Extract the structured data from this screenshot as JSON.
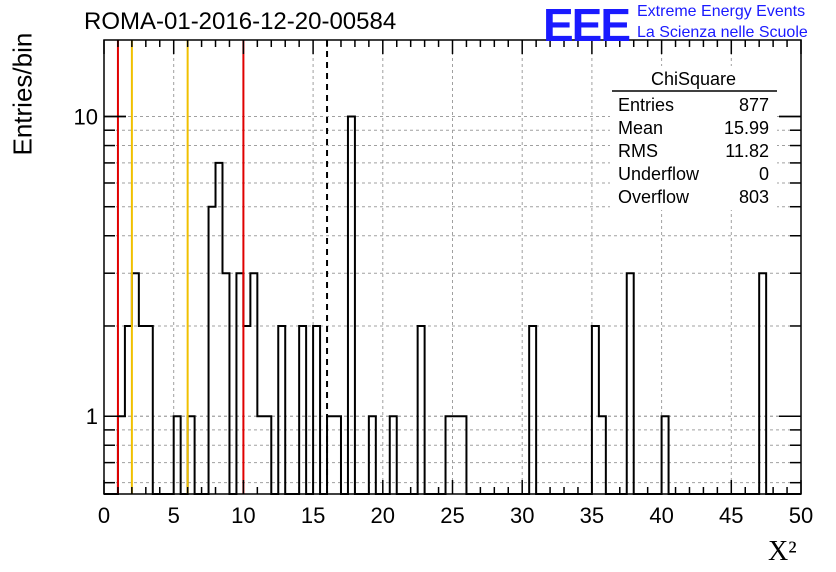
{
  "header": {
    "run_id": "ROMA-01-2016-12-20-00584",
    "logo_text": "EEE",
    "logo_line1": "Extreme Energy Events",
    "logo_line2": "La Scienza nelle Scuole"
  },
  "stats_box": {
    "title": "ChiSquare",
    "rows": [
      {
        "label": "Entries",
        "value": "877"
      },
      {
        "label": "Mean",
        "value": "15.99"
      },
      {
        "label": "RMS",
        "value": "11.82"
      },
      {
        "label": "Underflow",
        "value": "0"
      },
      {
        "label": "Overflow",
        "value": "803"
      }
    ]
  },
  "chart_data": {
    "type": "bar",
    "histogram": true,
    "ylabel": "Entries/bin",
    "xlabel": "X²",
    "xlim": [
      0,
      50
    ],
    "ylim": [
      0.55,
      18
    ],
    "yscale": "log",
    "grid": true,
    "bin_width": 0.5,
    "x_ticks": [
      0,
      5,
      10,
      15,
      20,
      25,
      30,
      35,
      40,
      45,
      50
    ],
    "y_ticks": [
      1,
      10
    ],
    "bins": [
      {
        "x0": 1.0,
        "count": 1
      },
      {
        "x0": 1.5,
        "count": 2
      },
      {
        "x0": 2.0,
        "count": 3
      },
      {
        "x0": 2.5,
        "count": 2
      },
      {
        "x0": 3.0,
        "count": 2
      },
      {
        "x0": 5.0,
        "count": 1
      },
      {
        "x0": 6.0,
        "count": 1
      },
      {
        "x0": 7.5,
        "count": 5
      },
      {
        "x0": 8.0,
        "count": 7
      },
      {
        "x0": 8.5,
        "count": 3
      },
      {
        "x0": 9.5,
        "count": 3
      },
      {
        "x0": 10.0,
        "count": 2
      },
      {
        "x0": 10.5,
        "count": 3
      },
      {
        "x0": 11.0,
        "count": 1
      },
      {
        "x0": 11.5,
        "count": 1
      },
      {
        "x0": 12.5,
        "count": 2
      },
      {
        "x0": 14.0,
        "count": 2
      },
      {
        "x0": 15.0,
        "count": 2
      },
      {
        "x0": 16.0,
        "count": 1
      },
      {
        "x0": 16.5,
        "count": 1
      },
      {
        "x0": 17.5,
        "count": 10
      },
      {
        "x0": 19.0,
        "count": 1
      },
      {
        "x0": 20.5,
        "count": 1
      },
      {
        "x0": 22.5,
        "count": 2
      },
      {
        "x0": 24.5,
        "count": 1
      },
      {
        "x0": 25.0,
        "count": 1
      },
      {
        "x0": 25.5,
        "count": 1
      },
      {
        "x0": 30.5,
        "count": 2
      },
      {
        "x0": 35.0,
        "count": 2
      },
      {
        "x0": 35.5,
        "count": 1
      },
      {
        "x0": 37.5,
        "count": 3
      },
      {
        "x0": 40.0,
        "count": 1
      },
      {
        "x0": 47.0,
        "count": 3
      }
    ],
    "reference_lines": [
      {
        "x": 1.0,
        "color": "#e00000",
        "style": "solid"
      },
      {
        "x": 2.0,
        "color": "#f0c000",
        "style": "solid"
      },
      {
        "x": 6.0,
        "color": "#f0c000",
        "style": "solid"
      },
      {
        "x": 10.0,
        "color": "#e00000",
        "style": "solid"
      },
      {
        "x": 16.0,
        "color": "#000000",
        "style": "dashed"
      }
    ]
  }
}
